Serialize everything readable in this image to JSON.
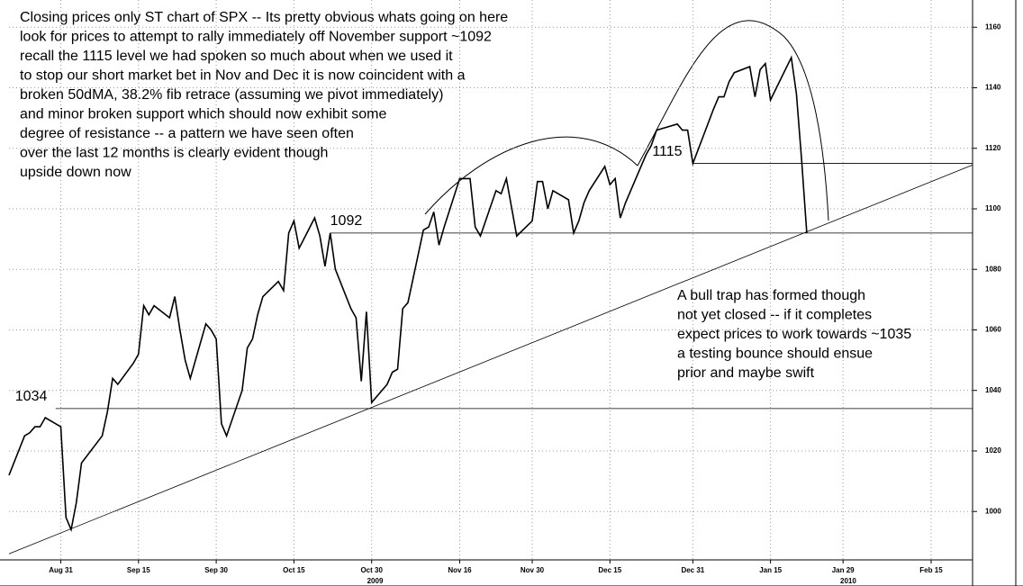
{
  "chart_data": {
    "type": "line",
    "color": "#000000",
    "grid": true,
    "x": [
      "2009-08-21",
      "2009-08-24",
      "2009-08-25",
      "2009-08-26",
      "2009-08-27",
      "2009-08-28",
      "2009-08-31",
      "2009-09-01",
      "2009-09-02",
      "2009-09-03",
      "2009-09-04",
      "2009-09-08",
      "2009-09-09",
      "2009-09-10",
      "2009-09-11",
      "2009-09-14",
      "2009-09-15",
      "2009-09-16",
      "2009-09-17",
      "2009-09-18",
      "2009-09-21",
      "2009-09-22",
      "2009-09-23",
      "2009-09-24",
      "2009-09-25",
      "2009-09-28",
      "2009-09-29",
      "2009-09-30",
      "2009-10-01",
      "2009-10-02",
      "2009-10-05",
      "2009-10-06",
      "2009-10-07",
      "2009-10-08",
      "2009-10-09",
      "2009-10-12",
      "2009-10-13",
      "2009-10-14",
      "2009-10-15",
      "2009-10-16",
      "2009-10-19",
      "2009-10-20",
      "2009-10-21",
      "2009-10-22",
      "2009-10-23",
      "2009-10-26",
      "2009-10-27",
      "2009-10-28",
      "2009-10-29",
      "2009-10-30",
      "2009-11-02",
      "2009-11-03",
      "2009-11-04",
      "2009-11-05",
      "2009-11-06",
      "2009-11-09",
      "2009-11-10",
      "2009-11-11",
      "2009-11-12",
      "2009-11-13",
      "2009-11-16",
      "2009-11-17",
      "2009-11-18",
      "2009-11-19",
      "2009-11-20",
      "2009-11-23",
      "2009-11-24",
      "2009-11-25",
      "2009-11-27",
      "2009-11-30",
      "2009-12-01",
      "2009-12-02",
      "2009-12-03",
      "2009-12-04",
      "2009-12-07",
      "2009-12-08",
      "2009-12-09",
      "2009-12-10",
      "2009-12-11",
      "2009-12-14",
      "2009-12-15",
      "2009-12-16",
      "2009-12-17",
      "2009-12-18",
      "2009-12-21",
      "2009-12-22",
      "2009-12-23",
      "2009-12-24",
      "2009-12-28",
      "2009-12-29",
      "2009-12-30",
      "2009-12-31",
      "2010-01-04",
      "2010-01-05",
      "2010-01-06",
      "2010-01-07",
      "2010-01-08",
      "2010-01-11",
      "2010-01-12",
      "2010-01-13",
      "2010-01-14",
      "2010-01-15",
      "2010-01-19",
      "2010-01-20",
      "2010-01-21",
      "2010-01-22"
    ],
    "values": [
      1012,
      1025,
      1026,
      1028,
      1028,
      1031,
      1028,
      998,
      994,
      1003,
      1016,
      1025,
      1033,
      1044,
      1042,
      1049,
      1052,
      1068,
      1065,
      1068,
      1064,
      1071,
      1060,
      1050,
      1044,
      1062,
      1060,
      1057,
      1029,
      1025,
      1040,
      1054,
      1057,
      1065,
      1071,
      1076,
      1073,
      1092,
      1096,
      1087,
      1097,
      1091,
      1081,
      1092,
      1080,
      1067,
      1064,
      1043,
      1066,
      1036,
      1042,
      1046,
      1047,
      1067,
      1069,
      1093,
      1094,
      1099,
      1088,
      1094,
      1110,
      1110,
      1110,
      1094,
      1091,
      1106,
      1105,
      1110,
      1091,
      1096,
      1109,
      1109,
      1100,
      1106,
      1103,
      1092,
      1096,
      1102,
      1106,
      1114,
      1108,
      1110,
      1097,
      1102,
      1114,
      1118,
      1121,
      1126,
      1128,
      1126,
      1126,
      1115,
      1133,
      1137,
      1137,
      1142,
      1145,
      1147,
      1137,
      1146,
      1148,
      1136,
      1150,
      1138,
      1116,
      1092
    ],
    "xlim": [
      "2009-08-21",
      "2010-02-23"
    ],
    "xticks": [
      {
        "value": "2009-08-31",
        "label": "Aug 31"
      },
      {
        "value": "2009-09-15",
        "label": "Sep 15"
      },
      {
        "value": "2009-09-30",
        "label": "Sep 30"
      },
      {
        "value": "2009-10-15",
        "label": "Oct 15"
      },
      {
        "value": "2009-10-30",
        "label": "Oct 30"
      },
      {
        "value": "2009-11-16",
        "label": "Nov 16"
      },
      {
        "value": "2009-11-30",
        "label": "Nov 30"
      },
      {
        "value": "2009-12-15",
        "label": "Dec 15"
      },
      {
        "value": "2009-12-31",
        "label": "Dec 31"
      },
      {
        "value": "2010-01-15",
        "label": "Jan 15"
      },
      {
        "value": "2010-01-29",
        "label": "Jan 29"
      },
      {
        "value": "2010-02-15",
        "label": "Feb 15"
      }
    ],
    "year_labels": [
      "2009",
      "2010"
    ],
    "ylim": [
      984,
      1169
    ],
    "yticks": [
      1000,
      1020,
      1040,
      1060,
      1080,
      1100,
      1120,
      1140,
      1160
    ],
    "levels": [
      {
        "level": 1034,
        "from": "2009-08-30"
      },
      {
        "level": 1092,
        "from": "2009-10-22"
      },
      {
        "level": 1115,
        "from": "2009-12-31"
      }
    ],
    "trendline": {
      "from": [
        "2009-08-21",
        986
      ],
      "to": [
        "2010-02-23",
        1114.5
      ]
    },
    "annotations": [
      [
        "Closing prices only ST chart of SPX -- Its pretty obvious whats going on here",
        "look for prices to attempt to rally immediately off November support ~1092",
        "recall the 1115 level we had spoken so much about when we used it",
        "to stop our short market bet in Nov and Dec it is now coincident with a",
        "broken 50dMA, 38.2% fib retrace (assuming we pivot immediately)",
        "and minor broken support which should now exhibit some",
        " degree of resistance -- a pattern we have seen often",
        "over the last 12 months is clearly evident though",
        "upside down now"
      ],
      [
        "A bull trap has formed though",
        "not yet closed -- if it completes",
        "expect prices to work towards ~1035",
        " a testing bounce should ensue",
        "prior and maybe swift"
      ]
    ]
  }
}
